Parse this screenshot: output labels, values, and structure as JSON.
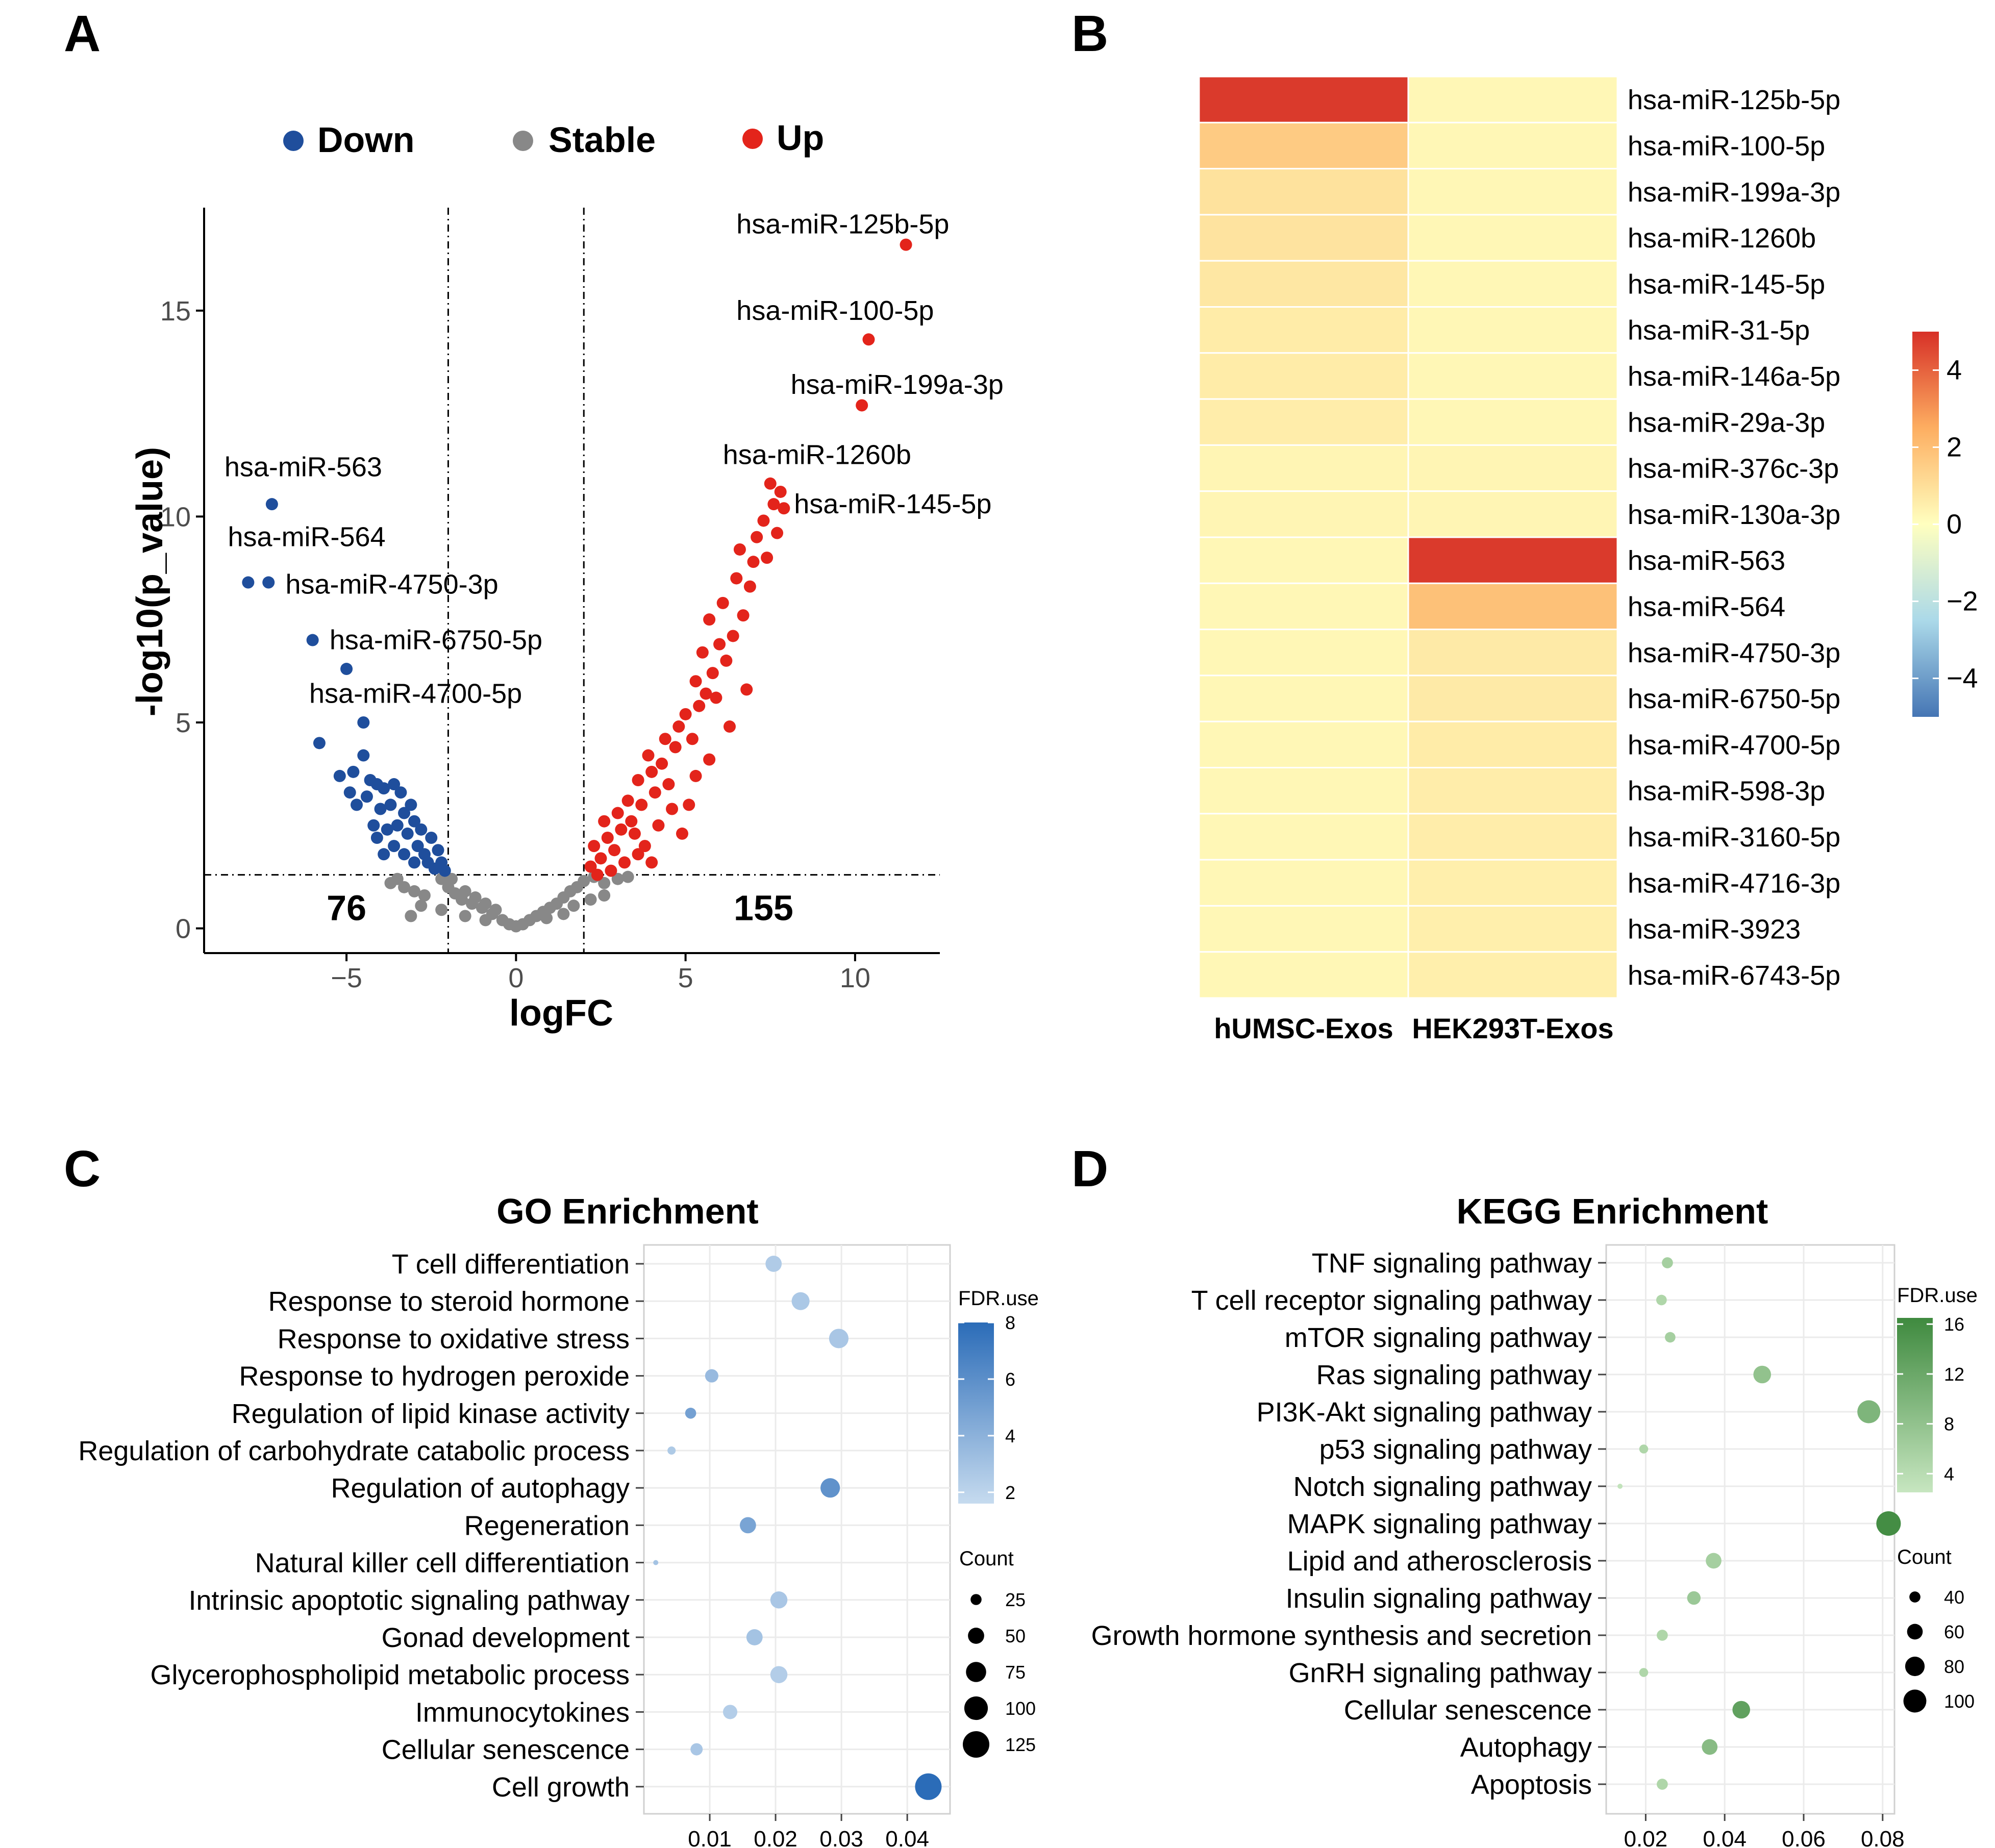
{
  "panels": {
    "a": "A",
    "b": "B",
    "c": "C",
    "d": "D"
  },
  "chart_data": [
    {
      "type": "scatter",
      "name": "volcano",
      "xlabel": "logFC",
      "ylabel": "-log10(p_value)",
      "xlim": [
        -9.2,
        12.5
      ],
      "ylim": [
        -0.6,
        17.5
      ],
      "xticks": [
        -5,
        0,
        5,
        10
      ],
      "yticks": [
        0,
        5,
        10,
        15
      ],
      "xtick_labels": [
        "−5",
        "0",
        "5",
        "10"
      ],
      "ytick_labels": [
        "0",
        "5",
        "10",
        "15"
      ],
      "thresholds": {
        "x": [
          -2,
          2
        ],
        "y": 1.3
      },
      "legend": [
        {
          "label": "Down",
          "color": "#1f4e9c"
        },
        {
          "label": "Stable",
          "color": "#888888"
        },
        {
          "label": "Up",
          "color": "#e3241b"
        }
      ],
      "counts": [
        {
          "label": "76",
          "x": -5,
          "y": 0.2
        },
        {
          "label": "155",
          "x": 7.3,
          "y": 0.2
        }
      ],
      "labeled_points": [
        {
          "label": "hsa-miR-125b-5p",
          "x": 11.5,
          "y": 16.6,
          "group": "Up",
          "lx": 6.5,
          "ly": 17.1
        },
        {
          "label": "hsa-miR-100-5p",
          "x": 10.4,
          "y": 14.3,
          "group": "Up",
          "lx": 6.5,
          "ly": 15.0
        },
        {
          "label": "hsa-miR-199a-3p",
          "x": 10.2,
          "y": 12.7,
          "group": "Up",
          "lx": 8.1,
          "ly": 13.2
        },
        {
          "label": "hsa-miR-1260b",
          "x": 7.5,
          "y": 10.8,
          "group": "Up",
          "lx": 6.1,
          "ly": 11.5
        },
        {
          "label": "hsa-miR-145-5p",
          "x": 7.8,
          "y": 10.6,
          "group": "Up",
          "lx": 8.2,
          "ly": 10.3
        },
        {
          "label": "hsa-miR-563",
          "x": -7.2,
          "y": 10.3,
          "group": "Down",
          "lx": -8.6,
          "ly": 11.2
        },
        {
          "label": "hsa-miR-564",
          "x": -7.9,
          "y": 8.4,
          "group": "Down",
          "lx": -8.5,
          "ly": 9.5
        },
        {
          "label": "hsa-miR-4750-3p",
          "x": -7.3,
          "y": 8.4,
          "group": "Down",
          "lx": -6.8,
          "ly": 8.35
        },
        {
          "label": "hsa-miR-6750-5p",
          "x": -6.0,
          "y": 7.0,
          "group": "Down",
          "lx": -5.5,
          "ly": 7.0
        },
        {
          "label": "hsa-miR-4700-5p",
          "x": -5.0,
          "y": 6.3,
          "group": "Down",
          "lx": -6.1,
          "ly": 5.7
        }
      ],
      "down_points": [
        [
          -5.8,
          4.5
        ],
        [
          -4.5,
          5.0
        ],
        [
          -4.5,
          4.2
        ],
        [
          -4.3,
          3.6
        ],
        [
          -4.8,
          3.8
        ],
        [
          -4.1,
          3.5
        ],
        [
          -3.6,
          3.5
        ],
        [
          -3.9,
          3.4
        ],
        [
          -3.4,
          3.3
        ],
        [
          -5.2,
          3.7
        ],
        [
          -4.9,
          3.3
        ],
        [
          -4.4,
          3.2
        ],
        [
          -4.7,
          3.0
        ],
        [
          -3.7,
          3.0
        ],
        [
          -3.1,
          3.0
        ],
        [
          -4.0,
          2.9
        ],
        [
          -3.3,
          2.8
        ],
        [
          -3.0,
          2.6
        ],
        [
          -4.2,
          2.5
        ],
        [
          -3.8,
          2.4
        ],
        [
          -3.5,
          2.5
        ],
        [
          -4.1,
          2.2
        ],
        [
          -3.2,
          2.3
        ],
        [
          -2.8,
          2.4
        ],
        [
          -3.6,
          2.0
        ],
        [
          -2.9,
          2.0
        ],
        [
          -2.5,
          2.2
        ],
        [
          -3.9,
          1.8
        ],
        [
          -3.3,
          1.8
        ],
        [
          -2.7,
          1.8
        ],
        [
          -2.3,
          1.9
        ],
        [
          -3.0,
          1.6
        ],
        [
          -2.6,
          1.6
        ],
        [
          -2.2,
          1.6
        ],
        [
          -2.4,
          1.45
        ],
        [
          -2.1,
          1.4
        ]
      ],
      "stable_points": [
        [
          -3.7,
          1.1
        ],
        [
          -3.3,
          1.0
        ],
        [
          -3.0,
          0.9
        ],
        [
          -2.7,
          0.8
        ],
        [
          -2.2,
          1.2
        ],
        [
          -2.0,
          1.0
        ],
        [
          -1.9,
          1.2
        ],
        [
          -1.8,
          0.85
        ],
        [
          -1.6,
          0.7
        ],
        [
          -1.5,
          0.9
        ],
        [
          -1.3,
          0.6
        ],
        [
          -1.2,
          0.75
        ],
        [
          -1.0,
          0.5
        ],
        [
          -0.9,
          0.6
        ],
        [
          -0.7,
          0.35
        ],
        [
          -0.6,
          0.45
        ],
        [
          -0.4,
          0.2
        ],
        [
          -0.2,
          0.1
        ],
        [
          0.0,
          0.05
        ],
        [
          0.2,
          0.1
        ],
        [
          0.4,
          0.2
        ],
        [
          0.6,
          0.3
        ],
        [
          0.8,
          0.4
        ],
        [
          1.0,
          0.5
        ],
        [
          1.2,
          0.6
        ],
        [
          1.4,
          0.75
        ],
        [
          1.6,
          0.9
        ],
        [
          1.8,
          1.0
        ],
        [
          2.0,
          1.15
        ],
        [
          2.3,
          1.25
        ],
        [
          2.6,
          1.1
        ],
        [
          3.0,
          1.2
        ],
        [
          3.3,
          1.25
        ],
        [
          1.7,
          0.55
        ],
        [
          1.4,
          0.35
        ],
        [
          2.2,
          0.7
        ],
        [
          2.6,
          0.8
        ],
        [
          -1.5,
          0.3
        ],
        [
          -2.2,
          0.45
        ],
        [
          -2.8,
          0.55
        ],
        [
          -3.5,
          1.2
        ],
        [
          0.9,
          0.25
        ],
        [
          -0.9,
          0.2
        ],
        [
          -3.1,
          0.3
        ]
      ],
      "up_points": [
        [
          2.2,
          1.5
        ],
        [
          2.5,
          1.7
        ],
        [
          2.9,
          1.9
        ],
        [
          2.3,
          2.0
        ],
        [
          2.7,
          2.2
        ],
        [
          3.1,
          2.4
        ],
        [
          2.6,
          2.6
        ],
        [
          3.4,
          2.6
        ],
        [
          3.0,
          2.8
        ],
        [
          3.5,
          2.3
        ],
        [
          3.8,
          2.0
        ],
        [
          4.2,
          2.5
        ],
        [
          3.3,
          3.1
        ],
        [
          3.7,
          3.0
        ],
        [
          4.1,
          3.3
        ],
        [
          3.6,
          3.6
        ],
        [
          4.0,
          3.8
        ],
        [
          4.5,
          3.5
        ],
        [
          4.3,
          4.0
        ],
        [
          3.9,
          4.2
        ],
        [
          4.7,
          4.4
        ],
        [
          4.4,
          4.6
        ],
        [
          4.8,
          4.9
        ],
        [
          5.2,
          4.6
        ],
        [
          5.0,
          5.2
        ],
        [
          5.4,
          5.4
        ],
        [
          5.6,
          5.7
        ],
        [
          5.3,
          6.0
        ],
        [
          5.8,
          6.2
        ],
        [
          5.9,
          5.6
        ],
        [
          6.2,
          6.5
        ],
        [
          5.5,
          6.7
        ],
        [
          6.0,
          6.9
        ],
        [
          6.4,
          7.1
        ],
        [
          5.7,
          7.5
        ],
        [
          6.7,
          7.6
        ],
        [
          6.1,
          7.9
        ],
        [
          6.9,
          8.3
        ],
        [
          6.5,
          8.5
        ],
        [
          7.0,
          8.9
        ],
        [
          7.1,
          9.5
        ],
        [
          7.3,
          9.9
        ],
        [
          7.6,
          10.3
        ],
        [
          7.9,
          10.2
        ],
        [
          7.7,
          9.6
        ],
        [
          7.4,
          9.0
        ],
        [
          6.6,
          9.2
        ],
        [
          4.6,
          2.9
        ],
        [
          5.1,
          3.0
        ],
        [
          5.3,
          3.7
        ],
        [
          4.9,
          2.3
        ],
        [
          5.7,
          4.1
        ],
        [
          6.3,
          4.9
        ],
        [
          6.8,
          5.8
        ],
        [
          2.4,
          1.3
        ],
        [
          3.2,
          1.6
        ],
        [
          3.6,
          1.8
        ],
        [
          4.0,
          1.6
        ],
        [
          2.8,
          1.4
        ]
      ]
    },
    {
      "type": "heatmap",
      "name": "mirna-heatmap",
      "columns": [
        "hUMSC-Exos",
        "HEK293T-Exos"
      ],
      "rows": [
        "hsa-miR-125b-5p",
        "hsa-miR-100-5p",
        "hsa-miR-199a-3p",
        "hsa-miR-1260b",
        "hsa-miR-145-5p",
        "hsa-miR-31-5p",
        "hsa-miR-146a-5p",
        "hsa-miR-29a-3p",
        "hsa-miR-376c-3p",
        "hsa-miR-130a-3p",
        "hsa-miR-563",
        "hsa-miR-564",
        "hsa-miR-4750-3p",
        "hsa-miR-6750-5p",
        "hsa-miR-4700-5p",
        "hsa-miR-598-3p",
        "hsa-miR-3160-5p",
        "hsa-miR-4716-3p",
        "hsa-miR-3923",
        "hsa-miR-6743-5p"
      ],
      "values": [
        [
          4.8,
          0.25
        ],
        [
          1.6,
          0.25
        ],
        [
          0.9,
          0.25
        ],
        [
          0.85,
          0.25
        ],
        [
          0.75,
          0.25
        ],
        [
          0.6,
          0.25
        ],
        [
          0.6,
          0.25
        ],
        [
          0.55,
          0.25
        ],
        [
          0.3,
          0.3
        ],
        [
          0.3,
          0.3
        ],
        [
          0.25,
          4.8
        ],
        [
          0.25,
          1.9
        ],
        [
          0.25,
          0.65
        ],
        [
          0.25,
          0.65
        ],
        [
          0.25,
          0.6
        ],
        [
          0.25,
          0.55
        ],
        [
          0.25,
          0.55
        ],
        [
          0.25,
          0.5
        ],
        [
          0.25,
          0.5
        ],
        [
          0.25,
          0.5
        ]
      ],
      "colorbar": {
        "min": -5,
        "max": 5,
        "ticks": [
          "4",
          "2",
          "0",
          "−2",
          "−4"
        ],
        "tick_values": [
          4,
          2,
          0,
          -2,
          -4
        ]
      }
    },
    {
      "type": "scatter",
      "name": "go-enrichment",
      "title": "GO Enrichment",
      "xlim": [
        0.0,
        0.0465
      ],
      "xticks": [
        0.01,
        0.02,
        0.03,
        0.04
      ],
      "xtick_labels": [
        "0.01",
        "0.02",
        "0.03",
        "0.04"
      ],
      "terms": [
        {
          "label": "T cell differentiation",
          "x": 0.0197,
          "count": 50,
          "fdr": 2.5
        },
        {
          "label": "Response to steroid hormone",
          "x": 0.0238,
          "count": 60,
          "fdr": 2.7
        },
        {
          "label": "Response to oxidative stress",
          "x": 0.0296,
          "count": 70,
          "fdr": 2.8
        },
        {
          "label": "Response to hydrogen peroxide",
          "x": 0.0103,
          "count": 35,
          "fdr": 3.5
        },
        {
          "label": "Regulation of lipid kinase activity",
          "x": 0.0071,
          "count": 25,
          "fdr": 5.0
        },
        {
          "label": "Regulation of carbohydrate catabolic process",
          "x": 0.0042,
          "count": 15,
          "fdr": 2.6
        },
        {
          "label": "Regulation of autophagy",
          "x": 0.0283,
          "count": 70,
          "fdr": 5.8
        },
        {
          "label": "Regeneration",
          "x": 0.0158,
          "count": 50,
          "fdr": 4.8
        },
        {
          "label": "Natural killer cell differentiation",
          "x": 0.0018,
          "count": 7,
          "fdr": 3.0
        },
        {
          "label": "Intrinsic apoptotic signaling pathway",
          "x": 0.0205,
          "count": 55,
          "fdr": 2.8
        },
        {
          "label": "Gonad development",
          "x": 0.0168,
          "count": 50,
          "fdr": 3.0
        },
        {
          "label": "Glycerophospholipid metabolic process",
          "x": 0.0205,
          "count": 55,
          "fdr": 2.4
        },
        {
          "label": "Immunocytokines",
          "x": 0.0131,
          "count": 40,
          "fdr": 2.4
        },
        {
          "label": "Cellular senescence",
          "x": 0.008,
          "count": 30,
          "fdr": 2.8
        },
        {
          "label": "Cell growth",
          "x": 0.0432,
          "count": 125,
          "fdr": 8.0
        }
      ],
      "fdr_legend": {
        "title": "FDR.use",
        "ticks": [
          "8",
          "6",
          "4",
          "2"
        ],
        "tick_values": [
          8,
          6,
          4,
          2
        ],
        "min": 1.6,
        "max": 8.0,
        "low_color": "#c6dbef",
        "high_color": "#2b6cb8"
      },
      "count_legend": {
        "title": "Count",
        "labels": [
          "25",
          "50",
          "75",
          "100",
          "125"
        ],
        "values": [
          25,
          50,
          75,
          100,
          125
        ]
      }
    },
    {
      "type": "scatter",
      "name": "kegg-enrichment",
      "title": "KEGG Enrichment",
      "xlim": [
        0.01,
        0.083
      ],
      "xticks": [
        0.02,
        0.04,
        0.06,
        0.08
      ],
      "xtick_labels": [
        "0.02",
        "0.04",
        "0.06",
        "0.08"
      ],
      "terms": [
        {
          "label": "TNF signaling pathway",
          "x": 0.0255,
          "count": 40,
          "fdr": 6
        },
        {
          "label": "T cell receptor signaling pathway",
          "x": 0.024,
          "count": 38,
          "fdr": 5
        },
        {
          "label": "mTOR signaling pathway",
          "x": 0.0262,
          "count": 38,
          "fdr": 6
        },
        {
          "label": "Ras signaling pathway",
          "x": 0.0495,
          "count": 70,
          "fdr": 8
        },
        {
          "label": "PI3K-Akt signaling pathway",
          "x": 0.0765,
          "count": 100,
          "fdr": 10
        },
        {
          "label": "p53 signaling pathway",
          "x": 0.0195,
          "count": 32,
          "fdr": 5
        },
        {
          "label": "Notch signaling pathway",
          "x": 0.0135,
          "count": 20,
          "fdr": 3
        },
        {
          "label": "MAPK signaling pathway",
          "x": 0.0815,
          "count": 110,
          "fdr": 16
        },
        {
          "label": "Lipid and atherosclerosis",
          "x": 0.0372,
          "count": 60,
          "fdr": 6
        },
        {
          "label": "Insulin signaling pathway",
          "x": 0.0322,
          "count": 50,
          "fdr": 7
        },
        {
          "label": "Growth hormone synthesis and secretion",
          "x": 0.0242,
          "count": 40,
          "fdr": 5
        },
        {
          "label": "GnRH signaling pathway",
          "x": 0.0195,
          "count": 32,
          "fdr": 5
        },
        {
          "label": "Cellular senescence",
          "x": 0.0442,
          "count": 70,
          "fdr": 13
        },
        {
          "label": "Autophagy",
          "x": 0.0362,
          "count": 60,
          "fdr": 9
        },
        {
          "label": "Apoptosis",
          "x": 0.0242,
          "count": 40,
          "fdr": 5
        }
      ],
      "fdr_legend": {
        "title": "FDR.use",
        "ticks": [
          "16",
          "12",
          "8",
          "4"
        ],
        "tick_values": [
          16,
          12,
          8,
          4
        ],
        "min": 2.5,
        "max": 16.5,
        "low_color": "#c7e6c0",
        "high_color": "#3f8a3f"
      },
      "count_legend": {
        "title": "Count",
        "labels": [
          "40",
          "60",
          "80",
          "100"
        ],
        "values": [
          40,
          60,
          80,
          100
        ]
      }
    }
  ]
}
